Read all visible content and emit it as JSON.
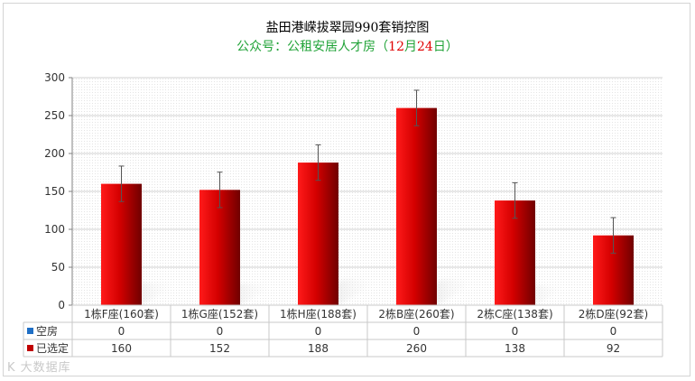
{
  "chart_data": {
    "type": "bar",
    "title": "盐田港嵘拔翠园990套销控图",
    "subtitle_prefix": "公众号：公租安居人才房（",
    "subtitle_month": "12",
    "subtitle_month_unit": "月",
    "subtitle_day": "24",
    "subtitle_day_unit": "日",
    "subtitle_suffix": "）",
    "categories": [
      "1栋F座(160套)",
      "1栋G座(152套)",
      "1栋H座(188套)",
      "2栋B座(260套)",
      "2栋C座(138套)",
      "2栋D座(92套)"
    ],
    "series": [
      {
        "name": "空房",
        "values": [
          0,
          0,
          0,
          0,
          0,
          0
        ],
        "color": "#1f6fc5"
      },
      {
        "name": "已选定",
        "values": [
          160,
          152,
          188,
          260,
          138,
          92
        ],
        "color": "#c00000"
      }
    ],
    "ylim": [
      0,
      300
    ],
    "yticks": [
      0,
      50,
      100,
      150,
      200,
      250,
      300
    ],
    "error_bars": true,
    "grid": true,
    "legend": "data-table",
    "bar_gradient": [
      "#ff1a1a",
      "#d40000",
      "#700000"
    ]
  },
  "watermark": "K 大数据库"
}
